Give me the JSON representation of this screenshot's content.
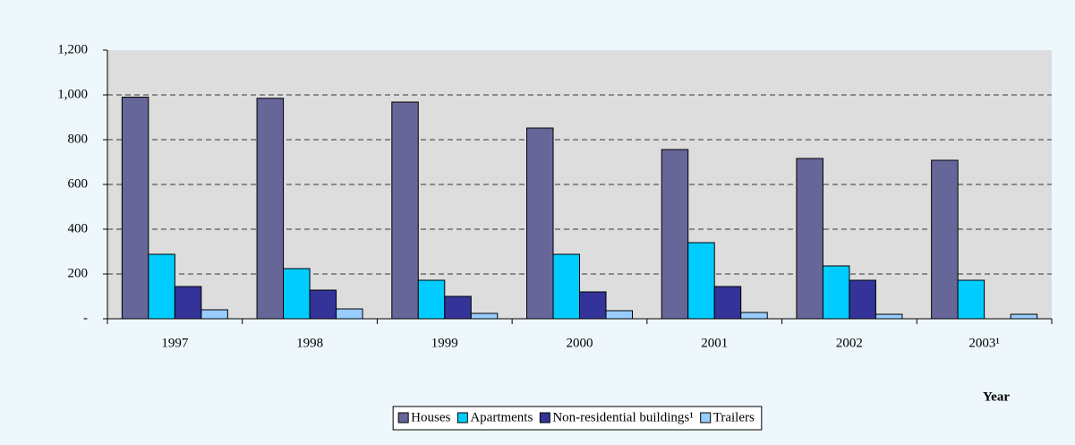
{
  "chart_data": {
    "type": "bar",
    "x_label": "Year",
    "categories": [
      "1997",
      "1998",
      "1999",
      "2000",
      "2001",
      "2002",
      "2003¹"
    ],
    "series": [
      {
        "name": "Houses",
        "color": "#666699",
        "values": [
          990,
          985,
          968,
          852,
          756,
          716,
          708
        ]
      },
      {
        "name": "Apartments",
        "color": "#00ccff",
        "values": [
          288,
          224,
          172,
          288,
          340,
          236,
          172
        ]
      },
      {
        "name": "Non-residential buildings¹",
        "color": "#333399",
        "values": [
          144,
          128,
          100,
          120,
          144,
          172,
          null
        ]
      },
      {
        "name": "Trailers",
        "color": "#99ccff",
        "values": [
          40,
          44,
          24,
          36,
          28,
          20,
          20
        ]
      }
    ],
    "ylim": [
      0,
      1200
    ],
    "yticks": [
      {
        "value": 0,
        "label": "-"
      },
      200,
      400,
      600,
      800,
      {
        "value": 1000,
        "label": "1,000"
      },
      {
        "value": 1200,
        "label": "1,200"
      }
    ],
    "grid": true
  }
}
